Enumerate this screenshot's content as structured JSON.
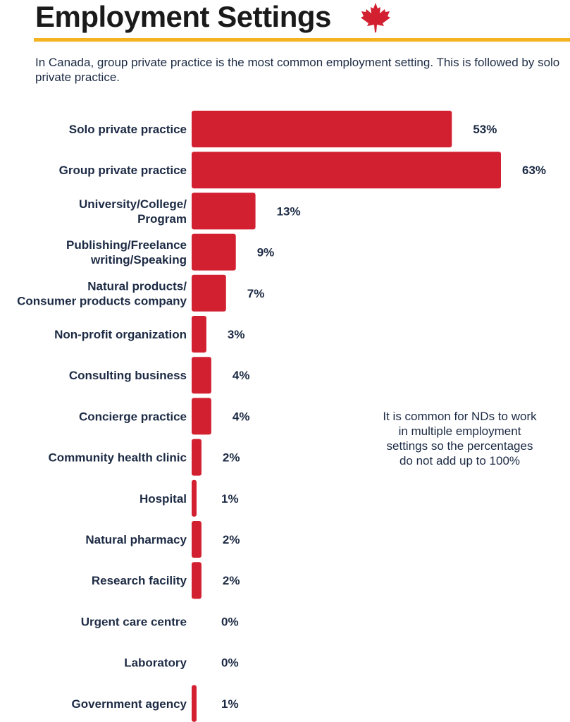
{
  "page": {
    "title": "Employment Settings",
    "intro": "In Canada, group private practice is the most common employment setting. This is followed by solo private practice.",
    "note": "It is common for NDs to work in multiple employment settings so the percentages do not add up to 100%"
  },
  "colors": {
    "bar": "#d22030",
    "text": "#1c2a44",
    "rule": "#f4b320"
  },
  "chart_data": {
    "type": "bar",
    "orientation": "horizontal",
    "categories": [
      [
        "Solo private practice"
      ],
      [
        "Group private practice"
      ],
      [
        "University/College/",
        "Program"
      ],
      [
        "Publishing/Freelance",
        "writing/Speaking"
      ],
      [
        "Natural products/",
        "Consumer products company"
      ],
      [
        "Non-profit organization"
      ],
      [
        "Consulting business"
      ],
      [
        "Concierge practice"
      ],
      [
        "Community health clinic"
      ],
      [
        "Hospital"
      ],
      [
        "Natural pharmacy"
      ],
      [
        "Research facility"
      ],
      [
        "Urgent care centre"
      ],
      [
        "Laboratory"
      ],
      [
        "Government agency"
      ]
    ],
    "values": [
      53,
      63,
      13,
      9,
      7,
      3,
      4,
      4,
      2,
      1,
      2,
      2,
      0,
      0,
      1
    ],
    "value_labels": [
      "53%",
      "63%",
      "13%",
      "9%",
      "7%",
      "3%",
      "4%",
      "4%",
      "2%",
      "1%",
      "2%",
      "2%",
      "0%",
      "0%",
      "1%"
    ],
    "xlim": [
      0,
      63
    ],
    "grid": false,
    "legend": "none"
  }
}
